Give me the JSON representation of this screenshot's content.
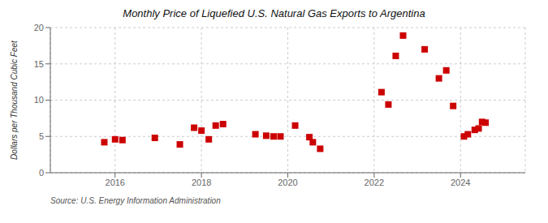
{
  "chart_data": {
    "type": "scatter",
    "title": "Monthly Price of Liquefied U.S. Natural Gas Exports to Argentina",
    "y_label": "Dollars per Thousand Cubic Feet",
    "annotations": [
      "Source: U.S. Energy Information Administration"
    ],
    "x": [
      2015.75,
      2016.0,
      2016.17,
      2016.92,
      2017.5,
      2017.83,
      2018.0,
      2018.17,
      2018.33,
      2018.5,
      2019.25,
      2019.5,
      2019.67,
      2019.83,
      2020.17,
      2020.5,
      2020.58,
      2020.75,
      2022.17,
      2022.33,
      2022.5,
      2022.67,
      2023.17,
      2023.5,
      2023.67,
      2023.83,
      2024.08,
      2024.17,
      2024.33,
      2024.42,
      2024.5,
      2024.58
    ],
    "values": [
      4.2,
      4.6,
      4.5,
      4.8,
      3.9,
      6.2,
      5.8,
      4.6,
      6.5,
      6.7,
      5.3,
      5.1,
      5.0,
      5.0,
      6.5,
      4.9,
      4.2,
      3.3,
      11.1,
      9.4,
      16.1,
      18.9,
      17.0,
      13.0,
      14.1,
      9.2,
      5.0,
      5.3,
      5.9,
      6.1,
      7.0,
      6.9
    ],
    "color": "#cc0000",
    "marker": "square",
    "xlim": [
      2014.5,
      2025.5
    ],
    "xticks": [
      2016,
      2018,
      2020,
      2022,
      2024
    ],
    "ylim": [
      0,
      20
    ],
    "yticks": [
      0,
      5,
      10,
      15,
      20
    ],
    "grid": true
  }
}
